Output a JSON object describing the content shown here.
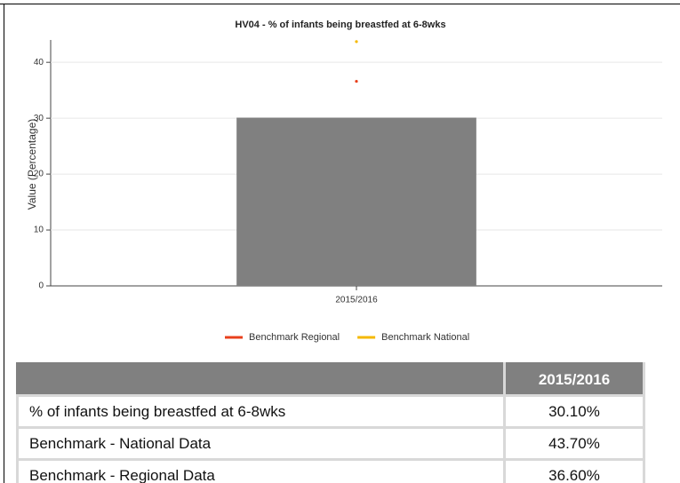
{
  "chart_data": {
    "type": "bar",
    "title": "HV04 - % of infants being breastfed at 6-8wks",
    "ylabel": "Value (Percentage)",
    "categories": [
      "2015/2016"
    ],
    "values": [
      30.1
    ],
    "color": "#808080",
    "series": [
      {
        "name": "Benchmark Regional",
        "color": "#e8401c",
        "values": [
          36.6
        ]
      },
      {
        "name": "Benchmark National",
        "color": "#f5b800",
        "values": [
          43.7
        ]
      }
    ],
    "ylim": [
      0,
      44
    ],
    "yticks": [
      0,
      10,
      20,
      30,
      40
    ],
    "grid": true,
    "legend": "bottom"
  },
  "table": {
    "columns": [
      "2015/2016"
    ],
    "rows": [
      [
        "% of infants being breastfed at 6-8wks",
        "30.10%"
      ],
      [
        "Benchmark - National Data",
        "43.70%"
      ],
      [
        "Benchmark - Regional Data",
        "36.60%"
      ]
    ]
  }
}
